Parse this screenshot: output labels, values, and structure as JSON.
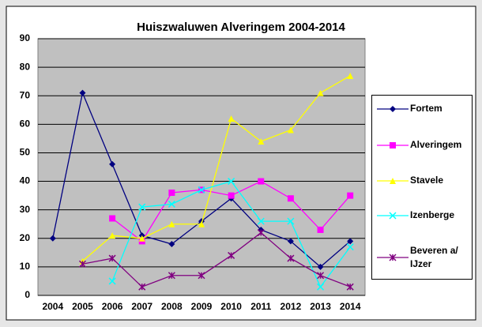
{
  "chart_data": {
    "type": "line",
    "title": "Huiszwaluwen Alveringem 2004-2014",
    "categories": [
      "2004",
      "2005",
      "2006",
      "2007",
      "2008",
      "2009",
      "2010",
      "2011",
      "2012",
      "2013",
      "2014"
    ],
    "series": [
      {
        "name": "Fortem",
        "color": "#000080",
        "marker": "diamond",
        "values": [
          20,
          71,
          46,
          21,
          18,
          26,
          34,
          23,
          19,
          10,
          19
        ]
      },
      {
        "name": "Alveringem",
        "color": "#ff00ff",
        "marker": "square",
        "values": [
          null,
          null,
          27,
          19,
          36,
          37,
          35,
          40,
          34,
          23,
          35
        ]
      },
      {
        "name": "Stavele",
        "color": "#ffff00",
        "marker": "triangle",
        "values": [
          null,
          12,
          21,
          20,
          25,
          25,
          62,
          54,
          58,
          71,
          77
        ]
      },
      {
        "name": "Izenberge",
        "color": "#00ffff",
        "marker": "x",
        "values": [
          null,
          null,
          5,
          31,
          32,
          37,
          40,
          26,
          26,
          3,
          17
        ]
      },
      {
        "name": "Beveren a/ IJzer",
        "color": "#800080",
        "marker": "star",
        "values": [
          null,
          11,
          13,
          3,
          7,
          7,
          14,
          22,
          13,
          7,
          3
        ]
      }
    ],
    "ylim": [
      0,
      90
    ],
    "yticks": [
      0,
      10,
      20,
      30,
      40,
      50,
      60,
      70,
      80,
      90
    ],
    "grid": true,
    "legend": "right"
  }
}
